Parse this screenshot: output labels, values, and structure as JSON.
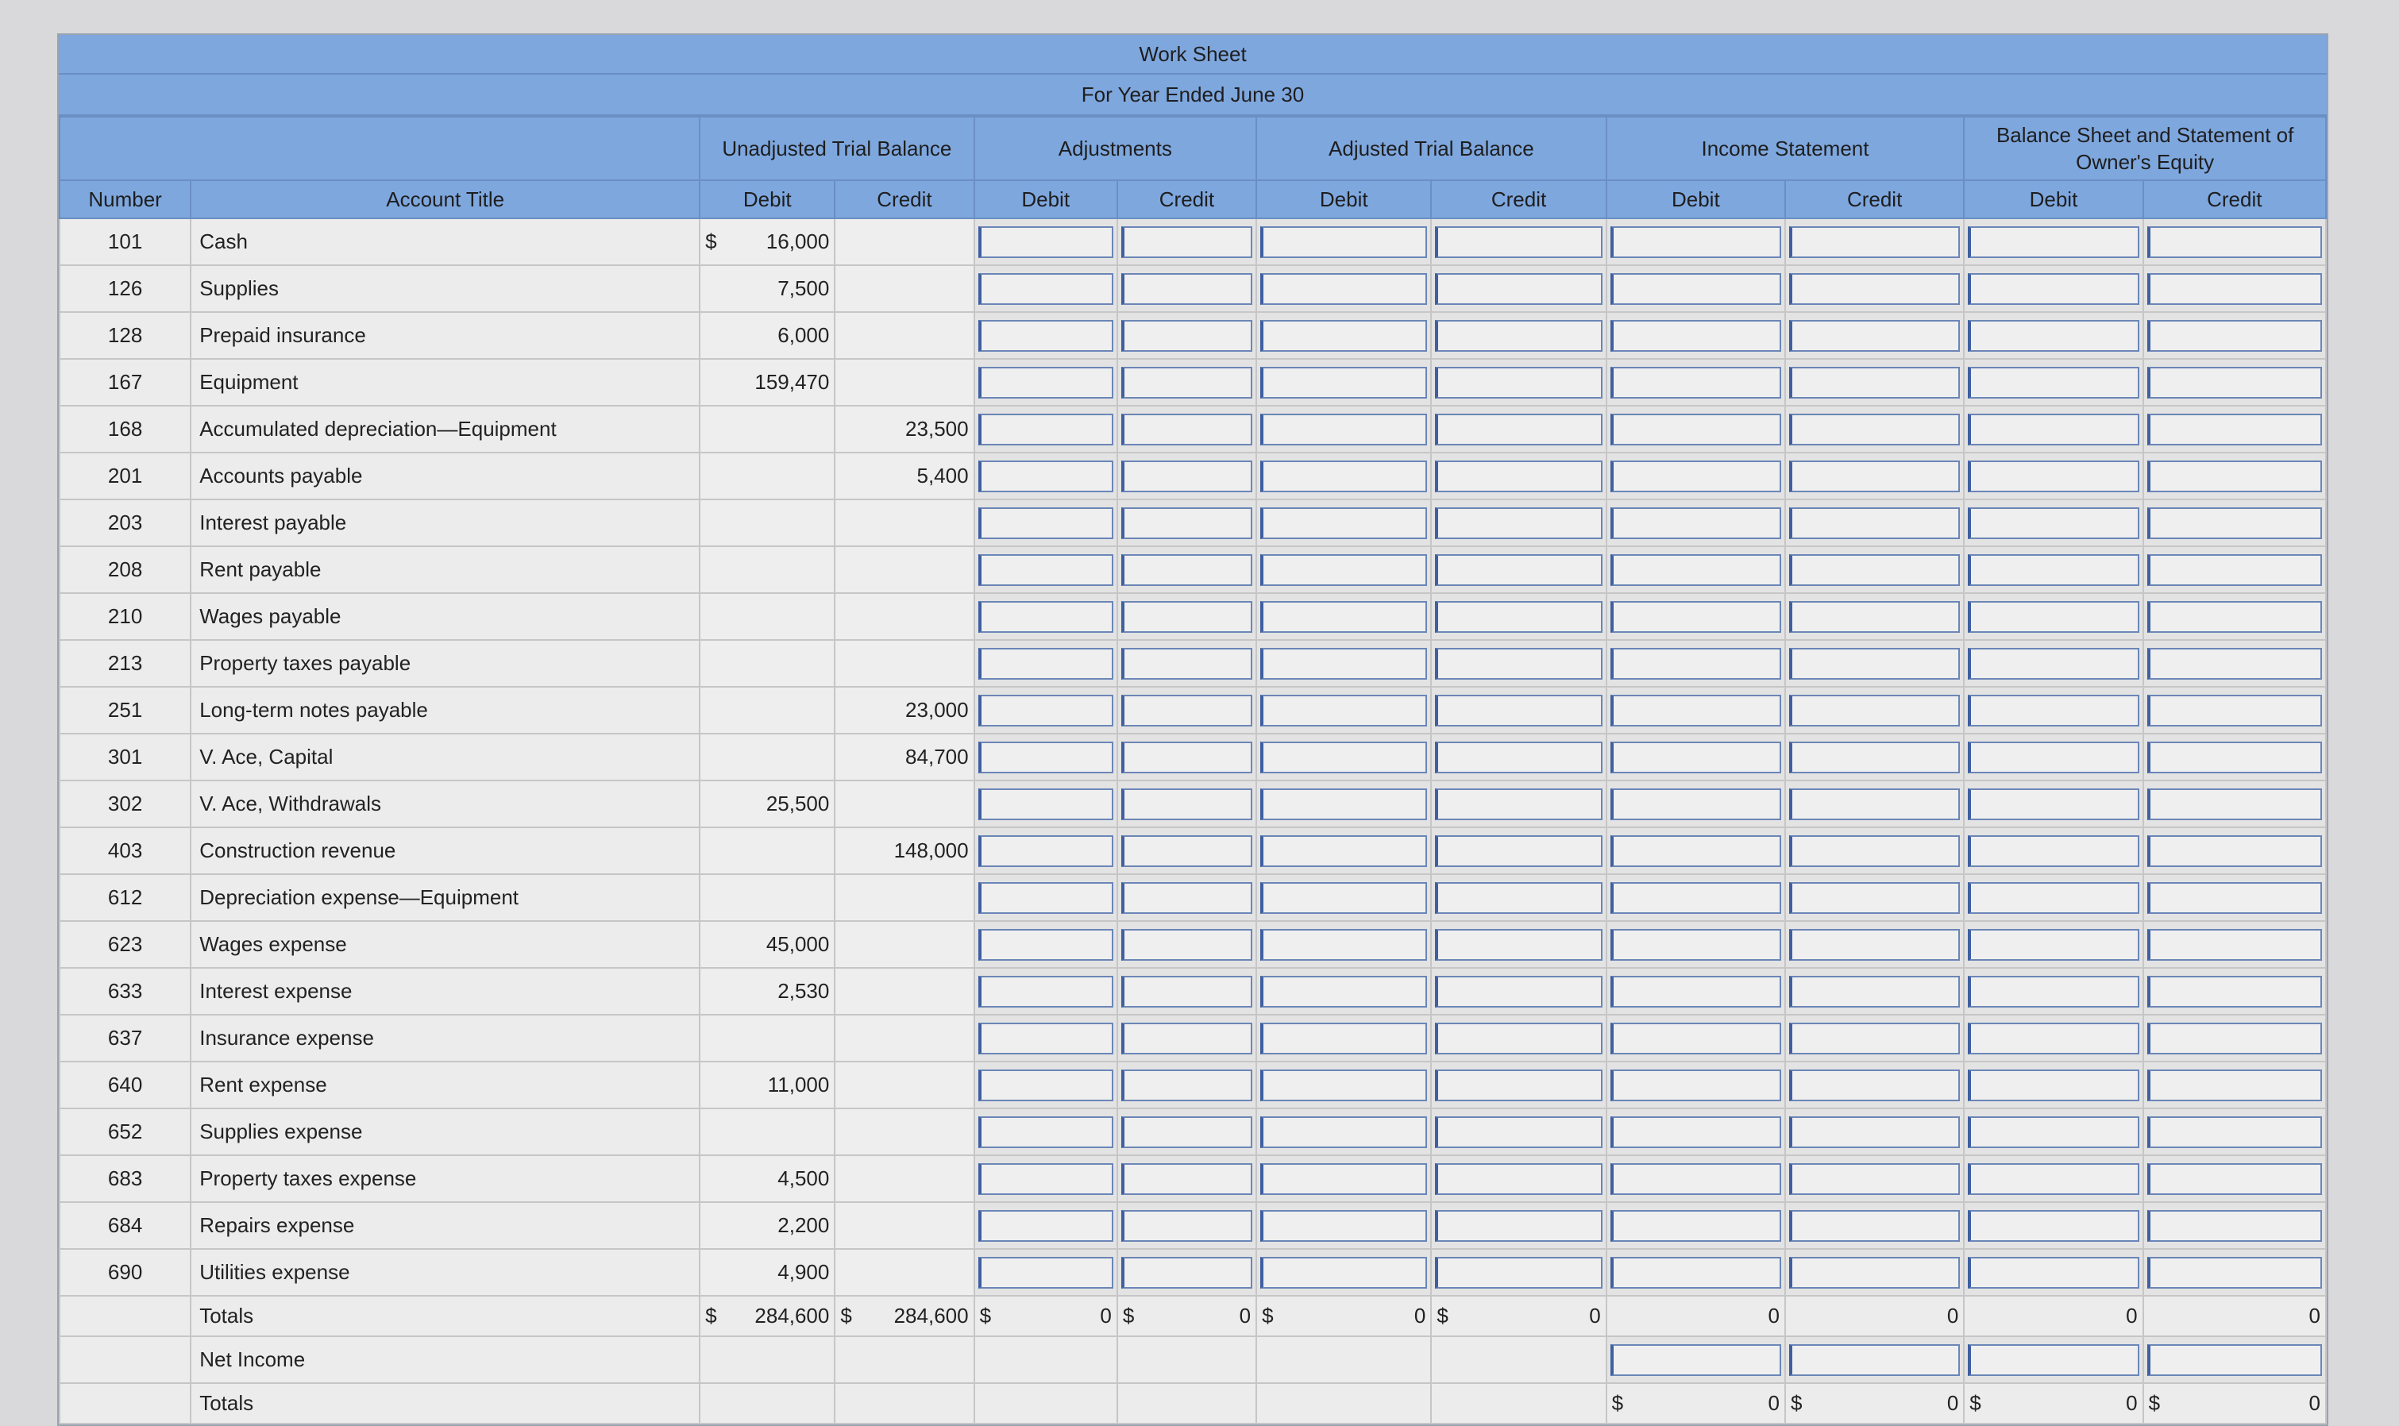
{
  "worksheet": {
    "title": "Work Sheet",
    "period": "For Year Ended June 30",
    "groups": [
      "Unadjusted Trial Balance",
      "Adjustments",
      "Adjusted Trial Balance",
      "Income Statement",
      "Balance Sheet and Statement of Owner's Equity"
    ],
    "col_number": "Number",
    "col_account": "Account Title",
    "debit": "Debit",
    "credit": "Credit",
    "accounts": [
      {
        "number": "101",
        "title": "Cash",
        "debit": "16,000",
        "credit": "",
        "debit_cur": "$"
      },
      {
        "number": "126",
        "title": "Supplies",
        "debit": "7,500",
        "credit": ""
      },
      {
        "number": "128",
        "title": "Prepaid insurance",
        "debit": "6,000",
        "credit": ""
      },
      {
        "number": "167",
        "title": "Equipment",
        "debit": "159,470",
        "credit": ""
      },
      {
        "number": "168",
        "title": "Accumulated depreciation—Equipment",
        "debit": "",
        "credit": "23,500"
      },
      {
        "number": "201",
        "title": "Accounts payable",
        "debit": "",
        "credit": "5,400"
      },
      {
        "number": "203",
        "title": "Interest payable",
        "debit": "",
        "credit": ""
      },
      {
        "number": "208",
        "title": "Rent payable",
        "debit": "",
        "credit": ""
      },
      {
        "number": "210",
        "title": "Wages payable",
        "debit": "",
        "credit": ""
      },
      {
        "number": "213",
        "title": "Property taxes payable",
        "debit": "",
        "credit": ""
      },
      {
        "number": "251",
        "title": "Long-term notes payable",
        "debit": "",
        "credit": "23,000"
      },
      {
        "number": "301",
        "title": "V. Ace, Capital",
        "debit": "",
        "credit": "84,700"
      },
      {
        "number": "302",
        "title": "V. Ace, Withdrawals",
        "debit": "25,500",
        "credit": ""
      },
      {
        "number": "403",
        "title": "Construction revenue",
        "debit": "",
        "credit": "148,000"
      },
      {
        "number": "612",
        "title": "Depreciation expense—Equipment",
        "debit": "",
        "credit": ""
      },
      {
        "number": "623",
        "title": "Wages expense",
        "debit": "45,000",
        "credit": ""
      },
      {
        "number": "633",
        "title": "Interest expense",
        "debit": "2,530",
        "credit": ""
      },
      {
        "number": "637",
        "title": "Insurance expense",
        "debit": "",
        "credit": ""
      },
      {
        "number": "640",
        "title": "Rent expense",
        "debit": "11,000",
        "credit": ""
      },
      {
        "number": "652",
        "title": "Supplies expense",
        "debit": "",
        "credit": ""
      },
      {
        "number": "683",
        "title": "Property taxes expense",
        "debit": "4,500",
        "credit": ""
      },
      {
        "number": "684",
        "title": "Repairs expense",
        "debit": "2,200",
        "credit": ""
      },
      {
        "number": "690",
        "title": "Utilities expense",
        "debit": "4,900",
        "credit": ""
      }
    ],
    "totals_label": "Totals",
    "net_income_label": "Net Income",
    "totals2_label": "Totals",
    "totals_row": [
      {
        "cur": "$",
        "val": "284,600"
      },
      {
        "cur": "$",
        "val": "284,600"
      },
      {
        "cur": "$",
        "val": "0"
      },
      {
        "cur": "$",
        "val": "0"
      },
      {
        "cur": "$",
        "val": "0"
      },
      {
        "cur": "$",
        "val": "0"
      },
      {
        "cur": "",
        "val": "0"
      },
      {
        "cur": "",
        "val": "0"
      },
      {
        "cur": "",
        "val": "0"
      },
      {
        "cur": "",
        "val": "0"
      }
    ],
    "final_totals": [
      {
        "cur": "$",
        "val": "0"
      },
      {
        "cur": "$",
        "val": "0"
      },
      {
        "cur": "$",
        "val": "0"
      },
      {
        "cur": "$",
        "val": "0"
      }
    ]
  }
}
